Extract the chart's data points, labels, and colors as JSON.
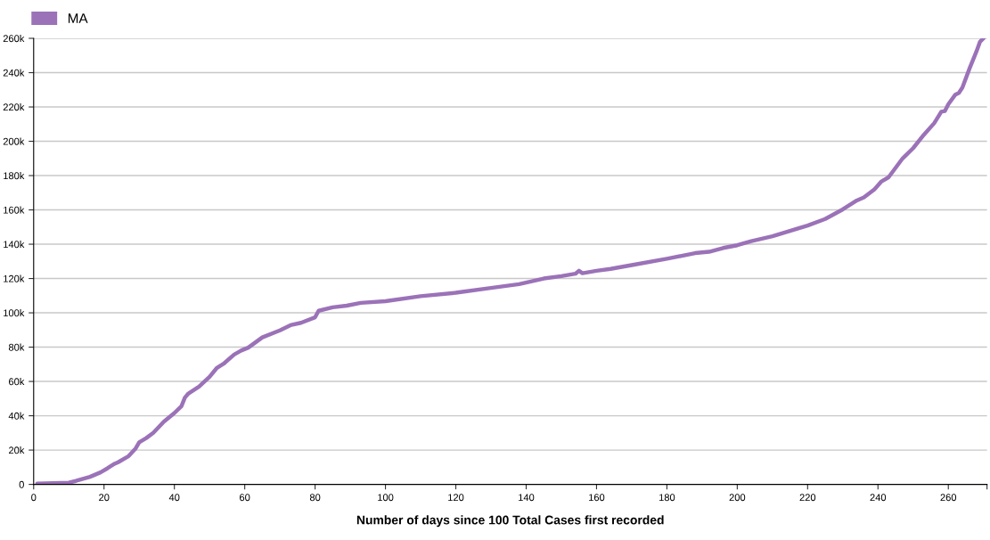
{
  "chart_data": {
    "type": "line",
    "xlabel": "Number of days since 100 Total Cases first recorded",
    "xlim": [
      0,
      271
    ],
    "xticks": [
      0,
      20,
      40,
      60,
      80,
      100,
      120,
      140,
      160,
      180,
      200,
      220,
      240,
      260,
      {
        "value": 271,
        "label": null
      }
    ],
    "ylim": [
      0,
      260000
    ],
    "yticks": [
      0,
      {
        "value": 20000,
        "label": "20k"
      },
      {
        "value": 40000,
        "label": "40k"
      },
      {
        "value": 60000,
        "label": "60k"
      },
      {
        "value": 80000,
        "label": "80k"
      },
      {
        "value": 100000,
        "label": "100k"
      },
      {
        "value": 120000,
        "label": "120k"
      },
      {
        "value": 140000,
        "label": "140k"
      },
      {
        "value": 160000,
        "label": "160k"
      },
      {
        "value": 180000,
        "label": "180k"
      },
      {
        "value": 200000,
        "label": "200k"
      },
      {
        "value": 220000,
        "label": "220k"
      },
      {
        "value": 240000,
        "label": "240k"
      },
      {
        "value": 260000,
        "label": "260k"
      }
    ],
    "grid": "y",
    "legend": "top left",
    "marker": "none",
    "line_style": "solid",
    "x": [
      1,
      10,
      12,
      16,
      19,
      21,
      23,
      24,
      27,
      29,
      30,
      32,
      34,
      37,
      40,
      42,
      43,
      44,
      47,
      50,
      52,
      54,
      57,
      59,
      61,
      63,
      65,
      70,
      73,
      76,
      80,
      81,
      85,
      89,
      93,
      100,
      110,
      120,
      130,
      138,
      145,
      150,
      154,
      155,
      156,
      160,
      164,
      170,
      180,
      188,
      192,
      196,
      200,
      204,
      210,
      215,
      220,
      225,
      230,
      234,
      236,
      239,
      241,
      243,
      247,
      250,
      253,
      256,
      258,
      259,
      260,
      262,
      263,
      264,
      266,
      268,
      269,
      270
    ],
    "series": [
      {
        "name": "MA",
        "color": "#9b72b8",
        "values": [
          400,
          1000,
          2000,
          4400,
          7000,
          9400,
          12000,
          12900,
          16500,
          21000,
          24500,
          27000,
          30000,
          36500,
          41600,
          45600,
          50600,
          53000,
          57000,
          62700,
          67700,
          70300,
          75700,
          78000,
          79700,
          82700,
          85700,
          89800,
          92800,
          94200,
          97400,
          101200,
          103200,
          104200,
          105800,
          106800,
          109700,
          111700,
          114500,
          116700,
          120000,
          121400,
          122800,
          124500,
          123100,
          124500,
          125600,
          127800,
          131500,
          134800,
          135600,
          137800,
          139400,
          141800,
          144600,
          147800,
          150900,
          154700,
          160300,
          165500,
          167300,
          172000,
          176600,
          179000,
          190000,
          196000,
          203700,
          210600,
          217200,
          217600,
          221600,
          227200,
          228200,
          231300,
          242300,
          252400,
          258000,
          260000
        ]
      }
    ]
  }
}
